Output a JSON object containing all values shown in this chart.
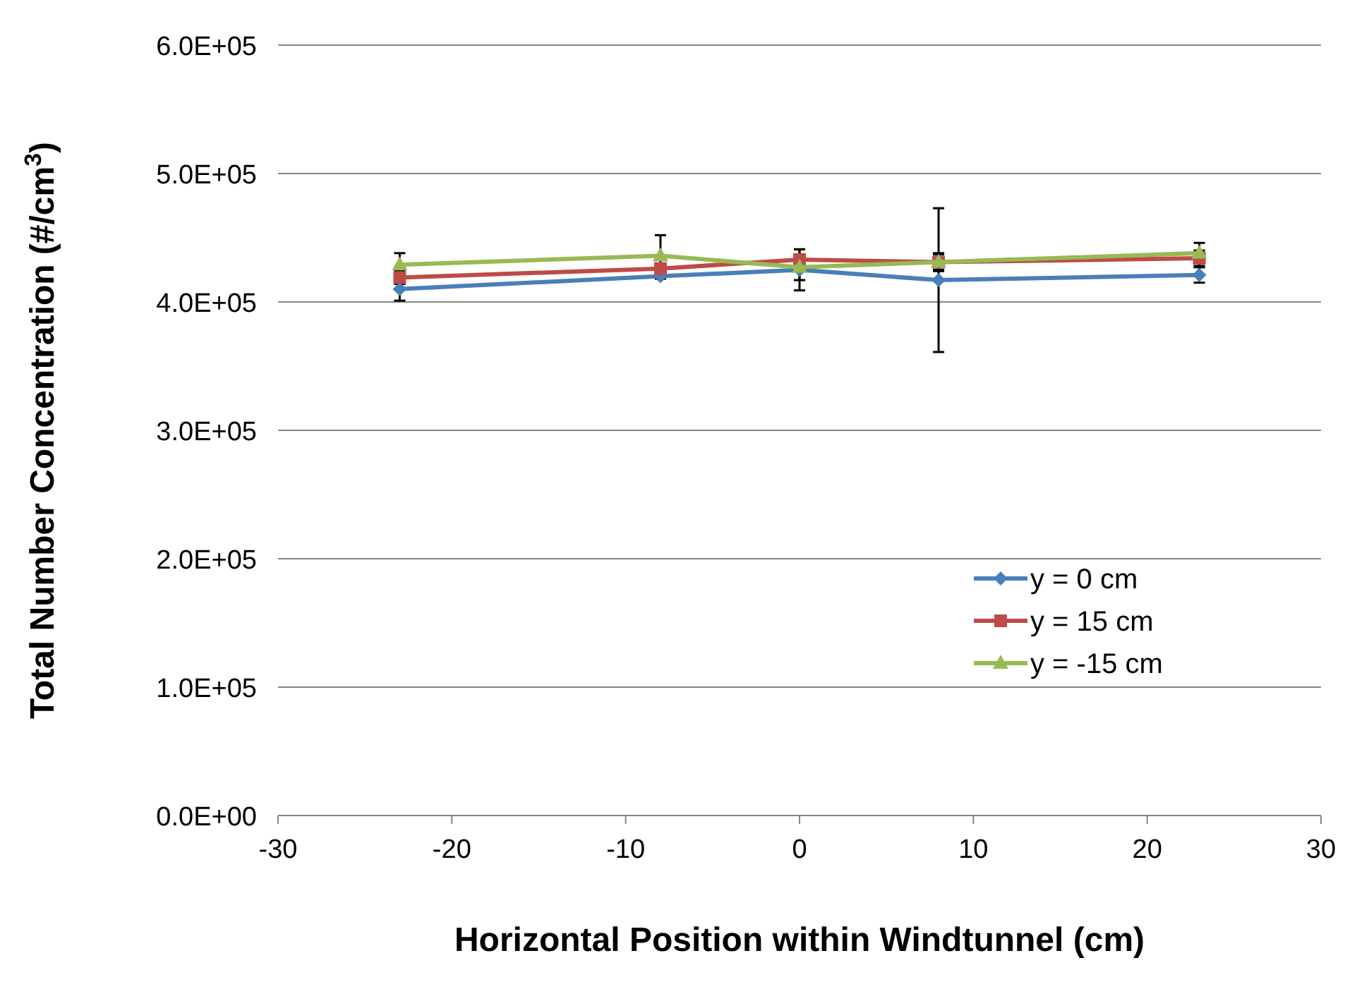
{
  "chart_data": {
    "type": "line",
    "xlabel": "Horizontal Position within Windtunnel (cm)",
    "ylabel": "Total Number Concentration (#/cm$^{3}$)",
    "x": [
      -23,
      -8,
      0,
      8,
      23
    ],
    "series": [
      {
        "name": "y = 0 cm",
        "color": "#4a7ebb",
        "marker": "diamond",
        "values": [
          410000,
          420000,
          425000,
          417000,
          421000
        ],
        "errors": [
          9000,
          2000,
          16000,
          56000,
          6000
        ]
      },
      {
        "name": "y = 15 cm",
        "color": "#be4b48",
        "marker": "square",
        "values": [
          419000,
          426000,
          433000,
          431000,
          434000
        ],
        "errors": [
          5000,
          null,
          8000,
          7000,
          6000
        ]
      },
      {
        "name": "y = -15 cm",
        "color": "#98b954",
        "marker": "triangle",
        "values": [
          429000,
          436000,
          427000,
          431000,
          438000
        ],
        "errors": [
          9000,
          16000,
          10000,
          6000,
          8000
        ]
      }
    ],
    "xlim": [
      -30,
      30
    ],
    "xticks": [
      -30,
      -20,
      -10,
      0,
      10,
      20,
      30
    ],
    "ylim": [
      0,
      600000
    ],
    "yticks": [
      {
        "value": 0,
        "label": "0.0E+00"
      },
      {
        "value": 100000,
        "label": "1.0E+05"
      },
      {
        "value": 200000,
        "label": "2.0E+05"
      },
      {
        "value": 300000,
        "label": "3.0E+05"
      },
      {
        "value": 400000,
        "label": "4.0E+05"
      },
      {
        "value": 500000,
        "label": "5.0E+05"
      },
      {
        "value": 600000,
        "label": "6.0E+05"
      }
    ],
    "grid": "y",
    "legend": "right",
    "line_style": "solid"
  }
}
